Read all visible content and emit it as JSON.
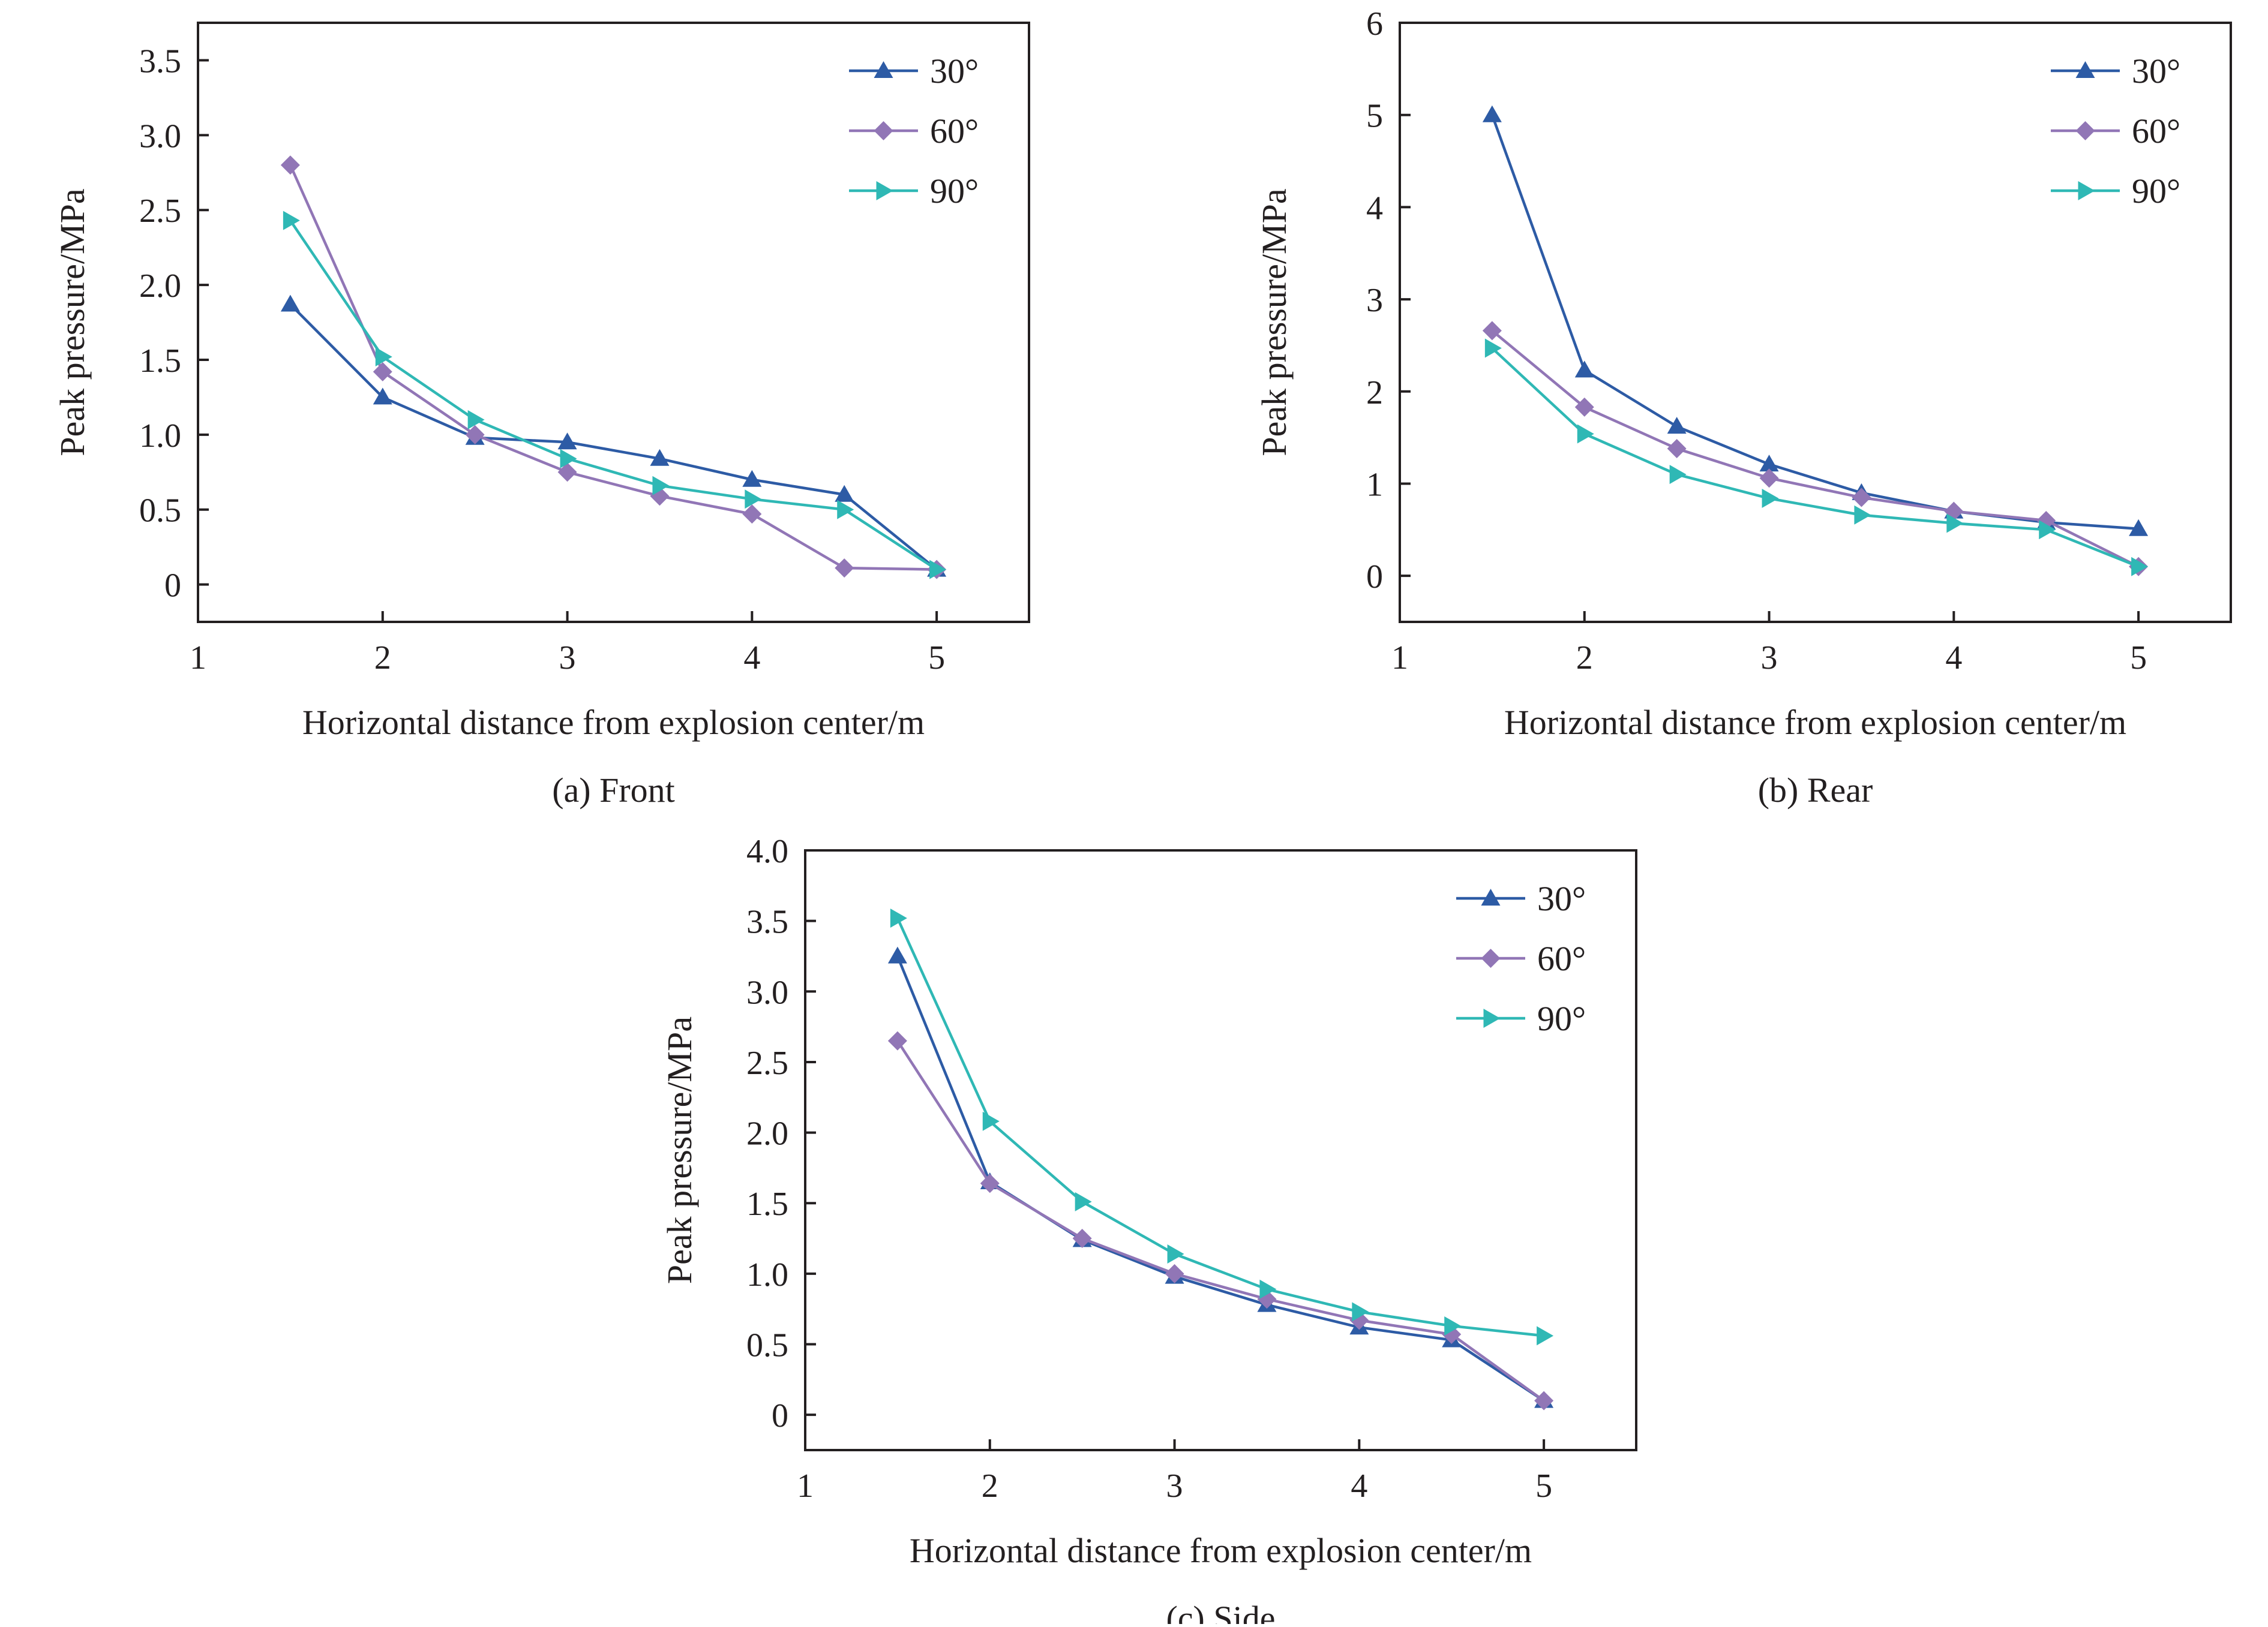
{
  "chart_data": [
    {
      "type": "line",
      "caption": "(a) Front",
      "xlabel": "Horizontal distance from explosion center/m",
      "ylabel": "Peak pressure/MPa",
      "xlim": [
        1,
        5.5
      ],
      "ylim": [
        -0.25,
        3.75
      ],
      "xticks": [
        1,
        2,
        3,
        4,
        5
      ],
      "xtick_labels": [
        "1",
        "2",
        "3",
        "4",
        "5"
      ],
      "yticks": [
        0,
        0.5,
        1.0,
        1.5,
        2.0,
        2.5,
        3.0,
        3.5
      ],
      "ytick_labels": [
        "0",
        "0.5",
        "1.0",
        "1.5",
        "2.0",
        "2.5",
        "3.0",
        "3.5"
      ],
      "legend_position": "top-right",
      "x": [
        1.5,
        2,
        2.5,
        3,
        3.5,
        4,
        4.5,
        5
      ],
      "series": [
        {
          "name": "30°",
          "marker": "triangle-up",
          "values": [
            1.87,
            1.25,
            0.98,
            0.95,
            0.84,
            0.7,
            0.6,
            0.1
          ]
        },
        {
          "name": "60°",
          "marker": "diamond",
          "values": [
            2.8,
            1.42,
            1.0,
            0.75,
            0.59,
            0.47,
            0.11,
            0.1
          ]
        },
        {
          "name": "90°",
          "marker": "triangle-right",
          "values": [
            2.43,
            1.52,
            1.1,
            0.84,
            0.66,
            0.57,
            0.5,
            0.1
          ]
        }
      ]
    },
    {
      "type": "line",
      "caption": "(b) Rear",
      "xlabel": "Horizontal distance from explosion center/m",
      "ylabel": "Peak pressure/MPa",
      "xlim": [
        1,
        5.5
      ],
      "ylim": [
        -0.5,
        6
      ],
      "xticks": [
        1,
        2,
        3,
        4,
        5
      ],
      "xtick_labels": [
        "1",
        "2",
        "3",
        "4",
        "5"
      ],
      "yticks": [
        0,
        1,
        2,
        3,
        4,
        5,
        6
      ],
      "ytick_labels": [
        "0",
        "1",
        "2",
        "3",
        "4",
        "5",
        "6"
      ],
      "legend_position": "top-right",
      "x": [
        1.5,
        2,
        2.5,
        3,
        3.5,
        4,
        4.5,
        5
      ],
      "series": [
        {
          "name": "30°",
          "marker": "triangle-up",
          "values": [
            5.0,
            2.23,
            1.62,
            1.21,
            0.9,
            0.7,
            0.58,
            0.51
          ]
        },
        {
          "name": "60°",
          "marker": "diamond",
          "values": [
            2.66,
            1.83,
            1.38,
            1.06,
            0.85,
            0.7,
            0.6,
            0.1
          ]
        },
        {
          "name": "90°",
          "marker": "triangle-right",
          "values": [
            2.47,
            1.54,
            1.1,
            0.84,
            0.66,
            0.57,
            0.5,
            0.1
          ]
        }
      ]
    },
    {
      "type": "line",
      "caption": "(c) Side",
      "xlabel": "Horizontal distance from explosion center/m",
      "ylabel": "Peak pressure/MPa",
      "xlim": [
        1,
        5.5
      ],
      "ylim": [
        -0.25,
        4.0
      ],
      "xticks": [
        1,
        2,
        3,
        4,
        5
      ],
      "xtick_labels": [
        "1",
        "2",
        "3",
        "4",
        "5"
      ],
      "yticks": [
        0,
        0.5,
        1.0,
        1.5,
        2.0,
        2.5,
        3.0,
        3.5,
        4.0
      ],
      "ytick_labels": [
        "0",
        "0.5",
        "1.0",
        "1.5",
        "2.0",
        "2.5",
        "3.0",
        "3.5",
        "4.0"
      ],
      "legend_position": "top-right",
      "x": [
        1.5,
        2,
        2.5,
        3,
        3.5,
        4,
        4.5,
        5
      ],
      "series": [
        {
          "name": "30°",
          "marker": "triangle-up",
          "values": [
            3.25,
            1.65,
            1.24,
            0.98,
            0.78,
            0.62,
            0.53,
            0.1
          ]
        },
        {
          "name": "60°",
          "marker": "diamond",
          "values": [
            2.65,
            1.64,
            1.25,
            1.0,
            0.82,
            0.67,
            0.57,
            0.1
          ]
        },
        {
          "name": "90°",
          "marker": "triangle-right",
          "values": [
            3.52,
            2.08,
            1.51,
            1.14,
            0.89,
            0.73,
            0.63,
            0.56
          ]
        }
      ]
    }
  ],
  "colors": {
    "30°": "#2d5ba5",
    "60°": "#9176b6",
    "90°": "#2fb8b5",
    "axis": "#231f20",
    "text": "#231f20"
  }
}
